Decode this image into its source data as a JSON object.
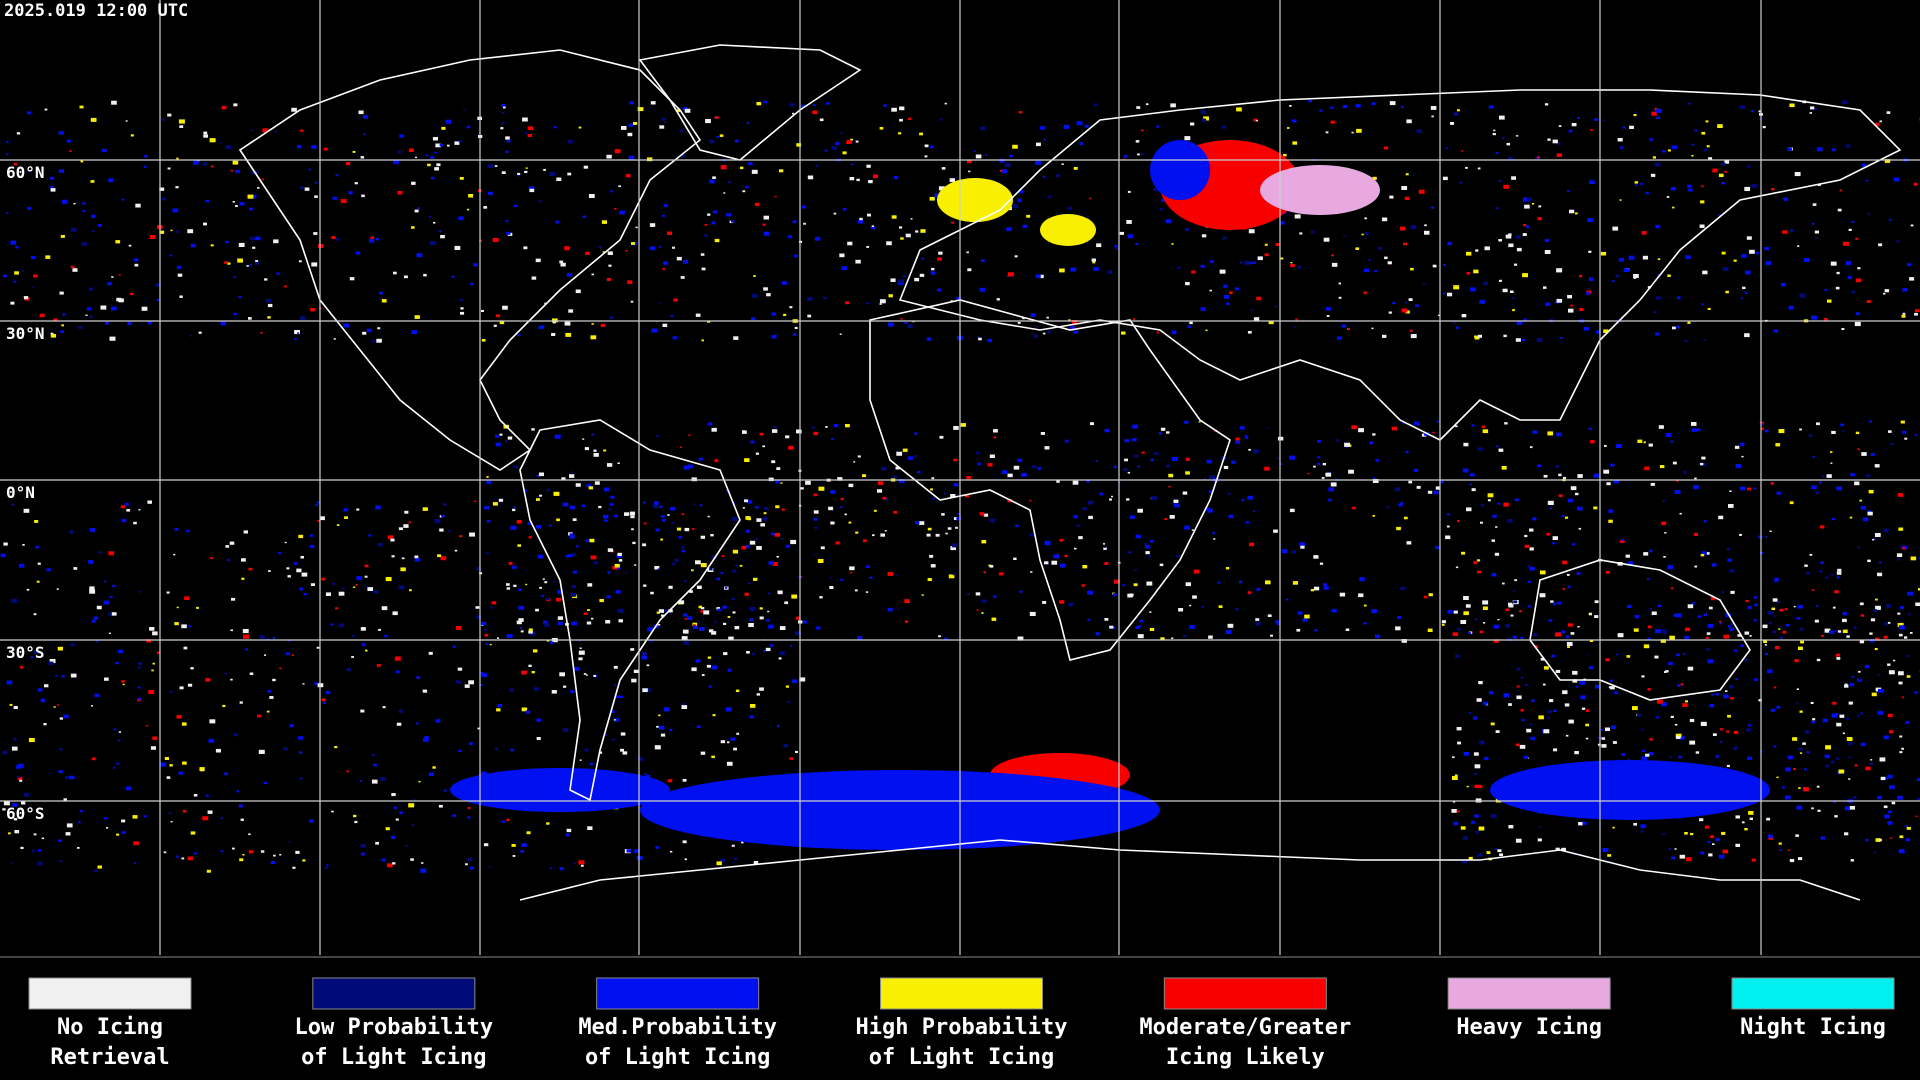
{
  "header": {
    "timestamp": "2025.019 12:00 UTC"
  },
  "map": {
    "latitude_labels": [
      "60°N",
      "30°N",
      "0°N",
      "30°S",
      "60°S"
    ]
  },
  "legend": [
    {
      "color": "#f0f0f0",
      "label": [
        "No Icing",
        "Retrieval"
      ]
    },
    {
      "color": "#000a78",
      "label": [
        "Low Probability",
        "of Light Icing"
      ]
    },
    {
      "color": "#0010f0",
      "label": [
        "Med.Probability",
        "of Light Icing"
      ]
    },
    {
      "color": "#f8f000",
      "label": [
        "High Probability",
        "of Light Icing"
      ]
    },
    {
      "color": "#f80000",
      "label": [
        "Moderate/Greater",
        "Icing Likely"
      ]
    },
    {
      "color": "#e8a8e0",
      "label": [
        "Heavy Icing"
      ]
    },
    {
      "color": "#00f0f0",
      "label": [
        "Night Icing"
      ]
    }
  ]
}
